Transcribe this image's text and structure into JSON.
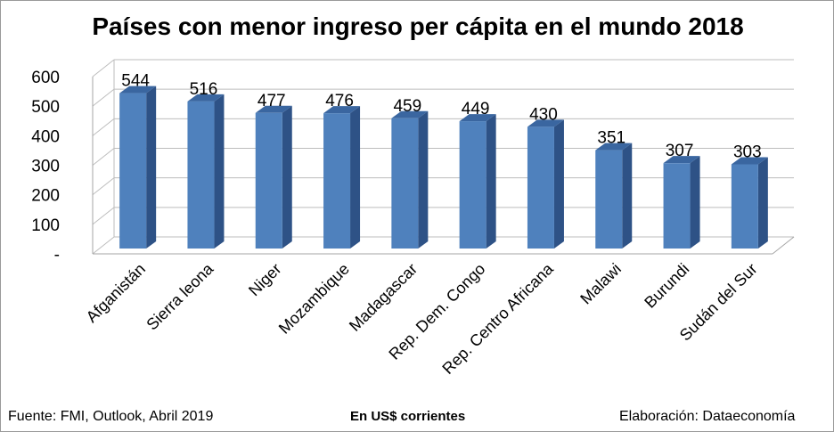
{
  "chart_data": {
    "type": "bar",
    "title": "Países con menor ingreso per cápita en el mundo 2018",
    "categories": [
      "Afganistán",
      "Sierra leona",
      "Niger",
      "Mozambique",
      "Madagascar",
      "Rep. Dem. Congo",
      "Rep. Centro Africana",
      "Malawi",
      "Burundi",
      "Sudán del Sur"
    ],
    "values": [
      544,
      516,
      477,
      476,
      459,
      449,
      430,
      351,
      307,
      303
    ],
    "data_labels": [
      "544",
      "516",
      "477",
      "476",
      "459",
      "449",
      "430",
      "351",
      "307",
      "303"
    ],
    "y_ticks": [
      "-",
      "100",
      "200",
      "300",
      "400",
      "500",
      "600"
    ],
    "ylim": [
      0,
      600
    ],
    "grid": true,
    "legend": "none",
    "bar_color": "#4f81bd",
    "bar_side_color": "#2e5286",
    "bar_top_color": "#3a66a0",
    "gridline_color": "#bdbdbd"
  },
  "footer": {
    "source": "Fuente: FMI, Outlook, Abril 2019",
    "units": "En US$ corrientes",
    "credit": "Elaboración: Dataeconomía"
  }
}
